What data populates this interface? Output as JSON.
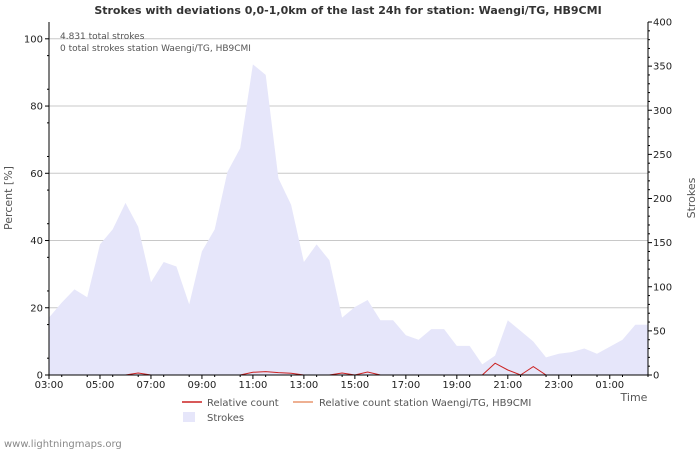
{
  "chart_data": {
    "type": "area",
    "title": "Strokes with deviations 0,0-1,0km of the last 24h for station: Waengi/TG, HB9CMI",
    "ylabel_left": "Percent   [%]",
    "ylabel_right": "Strokes",
    "xlabel": "Time",
    "ylim_left": [
      0,
      105
    ],
    "ylim_right": [
      0,
      400
    ],
    "yticks_left": [
      0,
      20,
      40,
      60,
      80,
      100
    ],
    "yticks_right": [
      0,
      50,
      100,
      150,
      200,
      250,
      300,
      350,
      400
    ],
    "xlim_hours": [
      3,
      26.5
    ],
    "xticks": [
      {
        "h": 3,
        "label": "03:00"
      },
      {
        "h": 5,
        "label": "05:00"
      },
      {
        "h": 7,
        "label": "07:00"
      },
      {
        "h": 9,
        "label": "09:00"
      },
      {
        "h": 11,
        "label": "11:00"
      },
      {
        "h": 13,
        "label": "13:00"
      },
      {
        "h": 15,
        "label": "15:00"
      },
      {
        "h": 17,
        "label": "17:00"
      },
      {
        "h": 19,
        "label": "19:00"
      },
      {
        "h": 21,
        "label": "21:00"
      },
      {
        "h": 23,
        "label": "23:00"
      },
      {
        "h": 25,
        "label": "01:00"
      }
    ],
    "annotations": [
      "4.831 total strokes",
      "0 total strokes station Waengi/TG, HB9CMI"
    ],
    "series": [
      {
        "name": "Strokes",
        "axis": "right",
        "color": "#e6e6fa",
        "x": [
          3.0,
          3.5,
          4.0,
          4.5,
          5.0,
          5.5,
          6.0,
          6.5,
          7.0,
          7.5,
          8.0,
          8.5,
          9.0,
          9.5,
          10.0,
          10.5,
          11.0,
          11.5,
          12.0,
          12.5,
          13.0,
          13.5,
          14.0,
          14.5,
          15.0,
          15.5,
          16.0,
          16.5,
          17.0,
          17.5,
          18.0,
          18.5,
          19.0,
          19.5,
          20.0,
          20.5,
          21.0,
          21.5,
          22.0,
          22.5,
          23.0,
          23.5,
          24.0,
          24.5,
          25.0,
          25.5,
          26.0,
          26.5
        ],
        "values": [
          65,
          82,
          97,
          88,
          148,
          165,
          195,
          168,
          105,
          128,
          123,
          80,
          140,
          165,
          230,
          257,
          352,
          340,
          223,
          193,
          128,
          148,
          130,
          65,
          77,
          85,
          62,
          62,
          45,
          40,
          52,
          52,
          33,
          33,
          12,
          22,
          62,
          50,
          38,
          20,
          24,
          26,
          30,
          24,
          32,
          40,
          57,
          57
        ]
      },
      {
        "name": "Relative count",
        "axis": "left",
        "color": "#cc2222",
        "x": [
          3.0,
          6.0,
          6.5,
          7.0,
          10.5,
          11.0,
          11.5,
          12.0,
          12.5,
          13.0,
          14.0,
          14.5,
          15.0,
          15.5,
          16.0,
          17.0,
          20.0,
          20.5,
          21.0,
          21.5,
          22.0,
          22.5,
          23.0,
          26.5
        ],
        "values": [
          0,
          0,
          0.6,
          0,
          0,
          0.8,
          1.0,
          0.7,
          0.5,
          0,
          0,
          0.6,
          0,
          0.9,
          0,
          0,
          0,
          3.5,
          1.5,
          0,
          2.5,
          0,
          0,
          0
        ]
      },
      {
        "name": "Relative count station Waengi/TG, HB9CMI",
        "axis": "left",
        "color": "#e8956f",
        "x": [
          3.0,
          26.5
        ],
        "values": [
          0,
          0
        ]
      }
    ],
    "legend": [
      "Relative count",
      "Relative count station Waengi/TG, HB9CMI",
      "Strokes"
    ]
  },
  "footer": "www.lightningmaps.org"
}
